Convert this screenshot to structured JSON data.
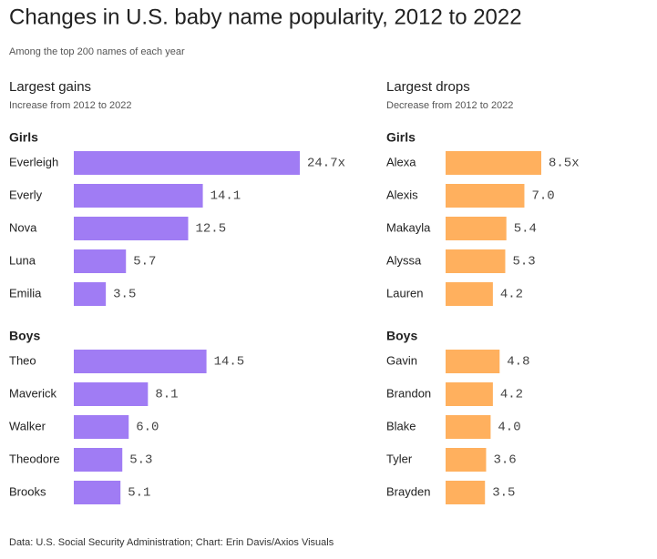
{
  "title": "Changes in U.S. baby name popularity, 2012 to 2022",
  "subtitle": "Among the top 200 names of each year",
  "source": "Data: U.S. Social Security Administration; Chart: Erin Davis/Axios Visuals",
  "columns": [
    {
      "title": "Largest gains",
      "subtitle": "Increase from 2012 to 2022"
    },
    {
      "title": "Largest drops",
      "subtitle": "Decrease from 2012 to 2022"
    }
  ],
  "chart_data": [
    {
      "type": "bar",
      "title": "Girls",
      "color": "#a07cf4",
      "categories": [
        "Everleigh",
        "Everly",
        "Nova",
        "Luna",
        "Emilia"
      ],
      "values": [
        24.7,
        14.1,
        12.5,
        5.7,
        3.5
      ],
      "value_labels": [
        "24.7x",
        "14.1",
        "12.5",
        "5.7",
        "3.5"
      ]
    },
    {
      "type": "bar",
      "title": "Boys",
      "color": "#a07cf4",
      "categories": [
        "Theo",
        "Maverick",
        "Walker",
        "Theodore",
        "Brooks"
      ],
      "values": [
        14.5,
        8.1,
        6.0,
        5.3,
        5.1
      ],
      "value_labels": [
        "14.5",
        "8.1",
        "6.0",
        "5.3",
        "5.1"
      ]
    },
    {
      "type": "bar",
      "title": "Girls",
      "color": "#ffb05e",
      "categories": [
        "Alexa",
        "Alexis",
        "Makayla",
        "Alyssa",
        "Lauren"
      ],
      "values": [
        8.5,
        7.0,
        5.4,
        5.3,
        4.2
      ],
      "value_labels": [
        "8.5x",
        "7.0",
        "5.4",
        "5.3",
        "4.2"
      ]
    },
    {
      "type": "bar",
      "title": "Boys",
      "color": "#ffb05e",
      "categories": [
        "Gavin",
        "Brandon",
        "Blake",
        "Tyler",
        "Brayden"
      ],
      "values": [
        4.8,
        4.2,
        4.0,
        3.6,
        3.5
      ],
      "value_labels": [
        "4.8",
        "4.2",
        "4.0",
        "3.6",
        "3.5"
      ]
    }
  ]
}
